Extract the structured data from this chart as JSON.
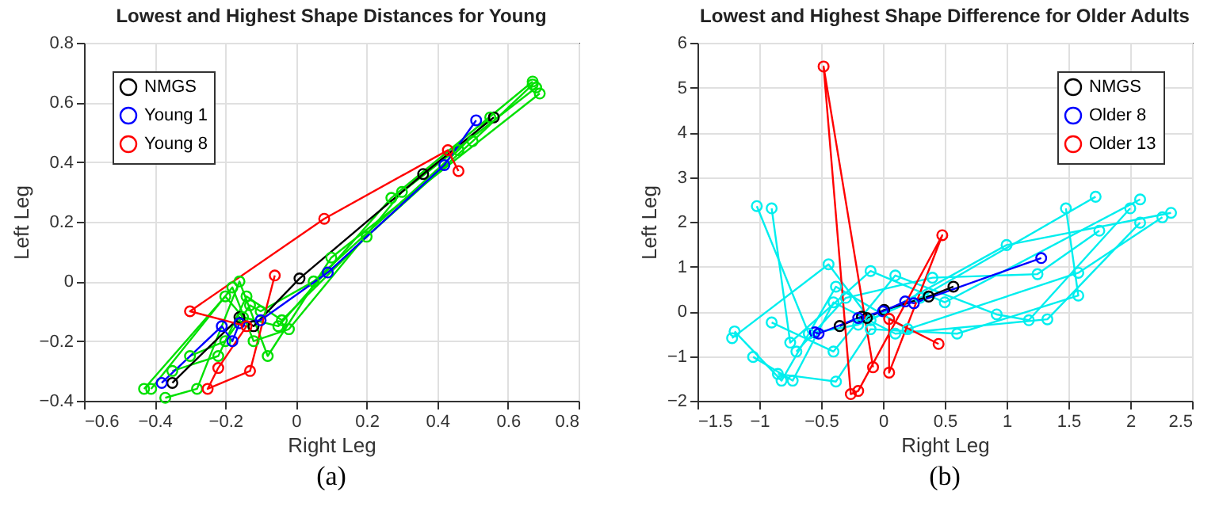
{
  "chart_data": [
    {
      "type": "line",
      "title": "Lowest and Highest Shape Distances for Young",
      "xlabel": "Right Leg",
      "ylabel": "Left Leg",
      "annotations": [
        "(a)"
      ],
      "xlim": [
        -0.6,
        0.8
      ],
      "xticks": [
        -0.6,
        -0.4,
        -0.2,
        0,
        0.2,
        0.4,
        0.6,
        0.8
      ],
      "ylim": [
        -0.4,
        0.8
      ],
      "yticks": [
        -0.4,
        -0.2,
        0,
        0.2,
        0.4,
        0.6,
        0.8
      ],
      "grid": true,
      "legend": "top left",
      "marker": "circle",
      "line_style": "solid",
      "series": [
        {
          "color": "#00e000",
          "x": [
            -0.43,
            -0.2,
            -0.15,
            -0.05,
            0.27,
            0.67
          ],
          "values": [
            -0.36,
            -0.05,
            -0.12,
            -0.15,
            0.28,
            0.67
          ]
        },
        {
          "color": "#00e000",
          "x": [
            -0.41,
            -0.18,
            -0.12,
            -0.02,
            0.3,
            0.68
          ],
          "values": [
            -0.36,
            -0.02,
            -0.2,
            -0.16,
            0.3,
            0.65
          ]
        },
        {
          "color": "#00e000",
          "x": [
            -0.37,
            -0.28,
            -0.16,
            -0.08,
            0.1,
            0.69
          ],
          "values": [
            -0.39,
            -0.36,
            0,
            -0.25,
            0.08,
            0.63
          ]
        },
        {
          "color": "#00e000",
          "x": [
            -0.35,
            -0.22,
            -0.14,
            -0.04,
            0.2,
            0.5,
            0.67
          ],
          "values": [
            -0.3,
            -0.25,
            -0.05,
            -0.13,
            0.15,
            0.47,
            0.66
          ]
        },
        {
          "color": "#00e000",
          "x": [
            -0.3,
            -0.2,
            -0.13,
            -0.1,
            0.05,
            0.46,
            0.55
          ],
          "values": [
            -0.25,
            -0.2,
            -0.08,
            -0.1,
            0,
            0.44,
            0.55
          ]
        },
        {
          "name": "NMGS",
          "color": "#000000",
          "x": [
            -0.35,
            -0.16,
            -0.12,
            0.01,
            0.36,
            0.56
          ],
          "values": [
            -0.34,
            -0.12,
            -0.15,
            0.01,
            0.36,
            0.55
          ]
        },
        {
          "name": "Young 1",
          "color": "#0000ff",
          "x": [
            -0.38,
            -0.21,
            -0.18,
            -0.16,
            -0.1,
            0.09,
            0.42,
            0.51
          ],
          "values": [
            -0.34,
            -0.15,
            -0.2,
            -0.14,
            -0.13,
            0.03,
            0.39,
            0.54
          ]
        },
        {
          "name": "Young 8",
          "color": "#ff0000",
          "x": [
            0.46,
            0.43,
            0.08,
            -0.3,
            -0.14,
            -0.22,
            -0.25,
            -0.13,
            -0.06
          ],
          "values": [
            0.37,
            0.44,
            0.21,
            -0.1,
            -0.15,
            -0.29,
            -0.36,
            -0.3,
            0.02
          ]
        }
      ]
    },
    {
      "type": "line",
      "title": "Lowest and Highest Shape Difference for Older Adults",
      "xlabel": "Right Leg",
      "ylabel": "Left Leg",
      "annotations": [
        "(b)"
      ],
      "xlim": [
        -1.5,
        2.5
      ],
      "xticks": [
        -1.5,
        -1,
        -0.5,
        0,
        0.5,
        1,
        1.5,
        2,
        2.5
      ],
      "ylim": [
        -2,
        6
      ],
      "yticks": [
        -2,
        -1,
        0,
        1,
        2,
        3,
        4,
        5,
        6
      ],
      "grid": true,
      "legend": "top right",
      "marker": "circle",
      "line_style": "solid",
      "series": [
        {
          "color": "#00eeee",
          "x": [
            -1.02,
            -0.6,
            -0.2,
            0.3,
            1.72
          ],
          "values": [
            2.35,
            -0.5,
            -0.3,
            0.3,
            2.56
          ]
        },
        {
          "color": "#00eeee",
          "x": [
            -0.9,
            -0.75,
            -0.1,
            0.5,
            2.08
          ],
          "values": [
            2.3,
            -0.7,
            0.9,
            0.2,
            2.5
          ]
        },
        {
          "color": "#00eeee",
          "x": [
            -1.22,
            -0.44,
            -0.1,
            1,
            2.33
          ],
          "values": [
            -0.6,
            1.05,
            -0.2,
            1.48,
            2.2
          ]
        },
        {
          "color": "#00eeee",
          "x": [
            -1.2,
            -0.82,
            -0.38,
            0.2,
            1.58,
            2.26
          ],
          "values": [
            -0.45,
            -1.55,
            0.55,
            -0.4,
            0.86,
            2.1
          ]
        },
        {
          "color": "#00eeee",
          "x": [
            -1.05,
            -0.73,
            -0.4,
            0.1,
            1.33,
            2.08
          ],
          "values": [
            -1.02,
            -1.55,
            0.2,
            -0.5,
            -0.18,
            1.98
          ]
        },
        {
          "color": "#00eeee",
          "x": [
            -0.85,
            -0.38,
            -0.1,
            0.6,
            1.58,
            1.48
          ],
          "values": [
            -1.4,
            -1.57,
            -0.4,
            -0.5,
            0.35,
            2.3
          ]
        },
        {
          "color": "#00eeee",
          "x": [
            -0.9,
            -0.4,
            0.1,
            0.92,
            1.18,
            2
          ],
          "values": [
            -0.25,
            -0.9,
            0.8,
            -0.07,
            -0.2,
            2.3
          ]
        },
        {
          "color": "#00eeee",
          "x": [
            -0.7,
            -0.3,
            0.4,
            1.25,
            1.75
          ],
          "values": [
            -0.9,
            0.3,
            0.75,
            0.83,
            1.8
          ]
        },
        {
          "name": "NMGS",
          "color": "#000000",
          "x": [
            -0.35,
            -0.17,
            -0.13,
            0.01,
            0.37,
            0.57
          ],
          "values": [
            -0.33,
            -0.12,
            -0.15,
            0.03,
            0.33,
            0.55
          ]
        },
        {
          "name": "Older 8",
          "color": "#0000ff",
          "x": [
            -0.55,
            -0.52,
            -0.2,
            0,
            0.18,
            0.25,
            1.28
          ],
          "values": [
            -0.47,
            -0.5,
            -0.15,
            0,
            0.22,
            0.18,
            1.19
          ]
        },
        {
          "name": "Older 13",
          "color": "#ff0000",
          "x": [
            -0.08,
            -0.48,
            -0.26,
            -0.2,
            0.48,
            0.05,
            0.05,
            0.45
          ],
          "values": [
            -1.25,
            5.47,
            -1.85,
            -1.78,
            1.7,
            -1.37,
            -0.17,
            -0.73
          ]
        }
      ]
    }
  ]
}
